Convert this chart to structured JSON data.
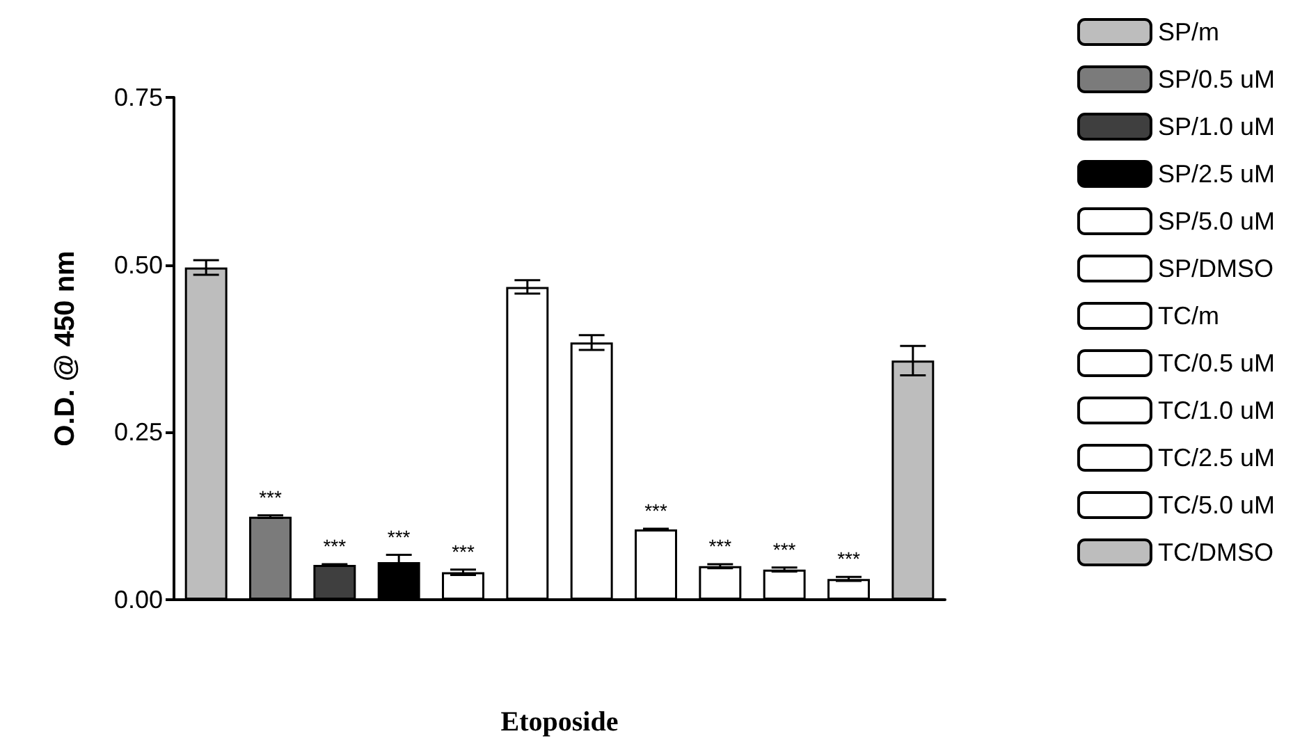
{
  "chart_data": {
    "type": "bar",
    "xlabel": "Etoposide",
    "ylabel": "O.D. @ 450 nm",
    "categories": [
      null,
      null,
      null,
      null,
      null,
      null,
      null,
      null,
      null,
      null,
      null,
      null
    ],
    "ylim": [
      0,
      0.75
    ],
    "yticks": [
      {
        "value": 0,
        "label": "0.00"
      },
      {
        "value": 0.25,
        "label": "0.25"
      },
      {
        "value": 0.5,
        "label": "0.50"
      },
      {
        "value": 0.75,
        "label": "0.75"
      }
    ],
    "grid": false,
    "legend": "right",
    "series": [
      {
        "name": "SP/m",
        "color": "#bdbdbd",
        "values": [
          0.496,
          null,
          null,
          null,
          null,
          null,
          null,
          null,
          null,
          null,
          null,
          null
        ],
        "errors": [
          0.011,
          null,
          null,
          null,
          null,
          null,
          null,
          null,
          null,
          null,
          null,
          null
        ]
      },
      {
        "name": "SP/0.5 uM",
        "color": "#7b7b7b",
        "values": [
          null,
          0.124,
          null,
          null,
          null,
          null,
          null,
          null,
          null,
          null,
          null,
          null
        ],
        "errors": [
          null,
          0.002,
          null,
          null,
          null,
          null,
          null,
          null,
          null,
          null,
          null,
          null
        ],
        "value_labels": [
          null,
          "***",
          null,
          null,
          null,
          null,
          null,
          null,
          null,
          null,
          null,
          null
        ]
      },
      {
        "name": "SP/1.0 uM",
        "color": "#3f3f3f",
        "values": [
          null,
          null,
          0.052,
          null,
          null,
          null,
          null,
          null,
          null,
          null,
          null,
          null
        ],
        "errors": [
          null,
          null,
          0.001,
          null,
          null,
          null,
          null,
          null,
          null,
          null,
          null,
          null
        ],
        "value_labels": [
          null,
          null,
          "***",
          null,
          null,
          null,
          null,
          null,
          null,
          null,
          null,
          null
        ]
      },
      {
        "name": "SP/2.5 uM",
        "color": "#000000",
        "values": [
          null,
          null,
          null,
          0.056,
          null,
          null,
          null,
          null,
          null,
          null,
          null,
          null
        ],
        "errors": [
          null,
          null,
          null,
          0.011,
          null,
          null,
          null,
          null,
          null,
          null,
          null,
          null
        ],
        "value_labels": [
          null,
          null,
          null,
          "***",
          null,
          null,
          null,
          null,
          null,
          null,
          null,
          null
        ]
      },
      {
        "name": "SP/5.0 uM",
        "color": "#ffffff",
        "values": [
          null,
          null,
          null,
          null,
          0.041,
          null,
          null,
          null,
          null,
          null,
          null,
          null
        ],
        "errors": [
          null,
          null,
          null,
          null,
          0.004,
          null,
          null,
          null,
          null,
          null,
          null,
          null
        ],
        "value_labels": [
          null,
          null,
          null,
          null,
          "***",
          null,
          null,
          null,
          null,
          null,
          null,
          null
        ]
      },
      {
        "name": "SP/DMSO",
        "color": "#ffffff",
        "values": [
          null,
          null,
          null,
          null,
          null,
          0.467,
          null,
          null,
          null,
          null,
          null,
          null
        ],
        "errors": [
          null,
          null,
          null,
          null,
          null,
          0.01,
          null,
          null,
          null,
          null,
          null,
          null
        ]
      },
      {
        "name": "TC/m",
        "color": "#ffffff",
        "values": [
          null,
          null,
          null,
          null,
          null,
          null,
          0.384,
          null,
          null,
          null,
          null,
          null
        ],
        "errors": [
          null,
          null,
          null,
          null,
          null,
          null,
          0.011,
          null,
          null,
          null,
          null,
          null
        ]
      },
      {
        "name": "TC/0.5 uM",
        "color": "#ffffff",
        "values": [
          null,
          null,
          null,
          null,
          null,
          null,
          null,
          0.105,
          null,
          null,
          null,
          null
        ],
        "errors": [
          null,
          null,
          null,
          null,
          null,
          null,
          null,
          0.001,
          null,
          null,
          null,
          null
        ],
        "value_labels": [
          null,
          null,
          null,
          null,
          null,
          null,
          null,
          "***",
          null,
          null,
          null,
          null
        ]
      },
      {
        "name": "TC/1.0 uM",
        "color": "#ffffff",
        "values": [
          null,
          null,
          null,
          null,
          null,
          null,
          null,
          null,
          0.05,
          null,
          null,
          null
        ],
        "errors": [
          null,
          null,
          null,
          null,
          null,
          null,
          null,
          null,
          0.003,
          null,
          null,
          null
        ],
        "value_labels": [
          null,
          null,
          null,
          null,
          null,
          null,
          null,
          null,
          "***",
          null,
          null,
          null
        ]
      },
      {
        "name": "TC/2.5 uM",
        "color": "#ffffff",
        "values": [
          null,
          null,
          null,
          null,
          null,
          null,
          null,
          null,
          null,
          0.045,
          null,
          null
        ],
        "errors": [
          null,
          null,
          null,
          null,
          null,
          null,
          null,
          null,
          null,
          0.003,
          null,
          null
        ],
        "value_labels": [
          null,
          null,
          null,
          null,
          null,
          null,
          null,
          null,
          null,
          "***",
          null,
          null
        ]
      },
      {
        "name": "TC/5.0 uM",
        "color": "#ffffff",
        "values": [
          null,
          null,
          null,
          null,
          null,
          null,
          null,
          null,
          null,
          null,
          0.031,
          null
        ],
        "errors": [
          null,
          null,
          null,
          null,
          null,
          null,
          null,
          null,
          null,
          null,
          0.003,
          null
        ],
        "value_labels": [
          null,
          null,
          null,
          null,
          null,
          null,
          null,
          null,
          null,
          null,
          "***",
          null
        ]
      },
      {
        "name": "TC/DMSO",
        "color": "#bdbdbd",
        "values": [
          null,
          null,
          null,
          null,
          null,
          null,
          null,
          null,
          null,
          null,
          null,
          0.357
        ],
        "errors": [
          null,
          null,
          null,
          null,
          null,
          null,
          null,
          null,
          null,
          null,
          null,
          0.022
        ]
      }
    ]
  }
}
